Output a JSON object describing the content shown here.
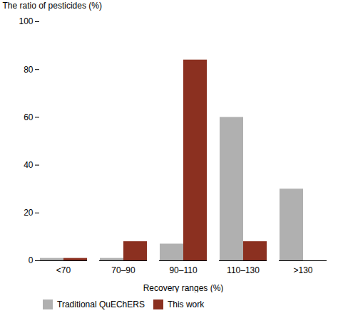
{
  "chart_data": {
    "type": "bar",
    "categories": [
      "<70",
      "70–90",
      "90–110",
      "110–130",
      ">130"
    ],
    "series": [
      {
        "name": "Traditional QuEChERS",
        "color": "#b0b0b0",
        "values": [
          1,
          1,
          7,
          60,
          30
        ]
      },
      {
        "name": "This work",
        "color": "#8B3020",
        "values": [
          1,
          8,
          84,
          8,
          0
        ]
      }
    ],
    "xlabel": "Recovery ranges (%)",
    "ylabel": "The ratio of pesticides (%)",
    "ylim": [
      0,
      100
    ],
    "yticks": [
      0,
      20,
      40,
      60,
      80,
      100
    ],
    "grid": false,
    "legend": "bottom"
  }
}
